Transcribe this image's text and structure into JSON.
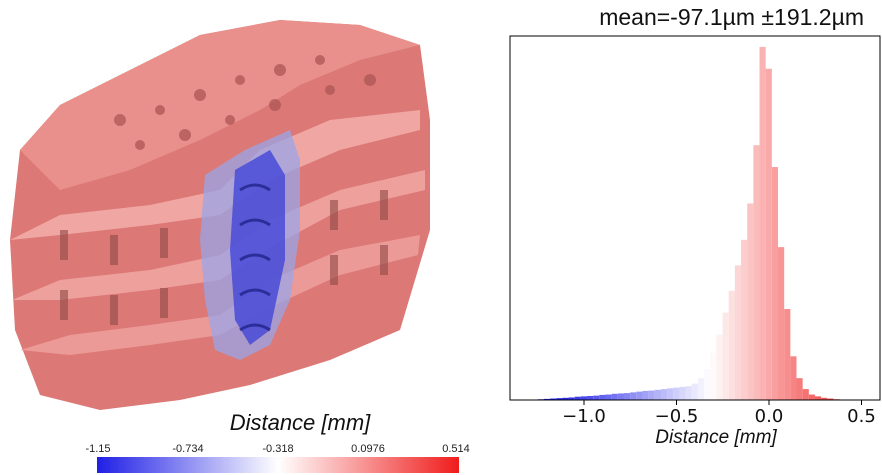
{
  "colorbar": {
    "title": "Distance [mm]",
    "ticks": [
      "-1.15",
      "-0.734",
      "-0.318",
      "0.0976",
      "0.514"
    ],
    "min": -1.15,
    "max": 0.514,
    "colors": {
      "low": "#1f1fe6",
      "mid": "#ffffff",
      "high": "#f01c1c"
    }
  },
  "chart_data": {
    "type": "bar",
    "title": "mean=-97.1µm ±191.2µm",
    "xlabel": "Distance [mm]",
    "ylabel": "",
    "xlim": [
      -1.4,
      0.6
    ],
    "ylim": [
      0,
      1.0
    ],
    "xticks": [
      -1.0,
      -0.5,
      0.0,
      0.5
    ],
    "xtick_labels": [
      "−1.0",
      "−0.5",
      "0.0",
      "0.5"
    ],
    "grid": false,
    "bin_width": 0.0333,
    "bin_start": -1.25,
    "values": [
      0.002,
      0.003,
      0.004,
      0.005,
      0.006,
      0.007,
      0.009,
      0.01,
      0.011,
      0.012,
      0.014,
      0.015,
      0.017,
      0.018,
      0.019,
      0.021,
      0.023,
      0.025,
      0.026,
      0.028,
      0.03,
      0.032,
      0.034,
      0.036,
      0.038,
      0.045,
      0.06,
      0.085,
      0.13,
      0.18,
      0.24,
      0.3,
      0.37,
      0.44,
      0.54,
      0.7,
      0.97,
      0.91,
      0.64,
      0.42,
      0.25,
      0.12,
      0.06,
      0.03,
      0.015,
      0.01,
      0.006,
      0.004,
      0.002,
      0.001
    ]
  }
}
